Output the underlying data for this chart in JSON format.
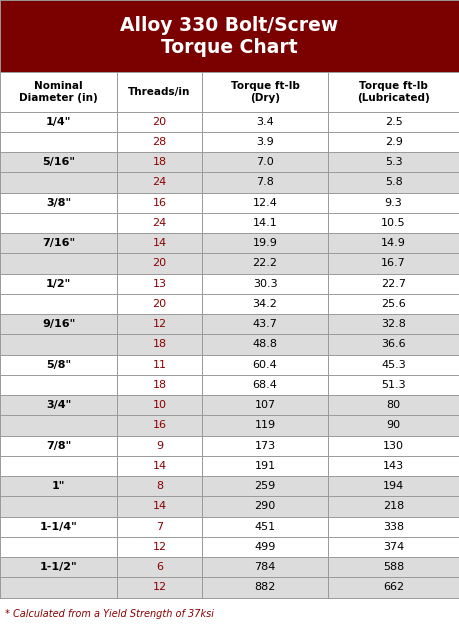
{
  "title": "Alloy 330 Bolt/Screw\nTorque Chart",
  "title_bg": "#7B0000",
  "title_color": "#FFFFFF",
  "header_bg": "#FFFFFF",
  "header_color": "#000000",
  "col_headers": [
    "Nominal\nDiameter (in)",
    "Threads/in",
    "Torque ft-lb\n(Dry)",
    "Torque ft-lb\n(Lubricated)"
  ],
  "rows": [
    [
      "1/4\"",
      "20",
      "3.4",
      "2.5"
    ],
    [
      "",
      "28",
      "3.9",
      "2.9"
    ],
    [
      "5/16\"",
      "18",
      "7.0",
      "5.3"
    ],
    [
      "",
      "24",
      "7.8",
      "5.8"
    ],
    [
      "3/8\"",
      "16",
      "12.4",
      "9.3"
    ],
    [
      "",
      "24",
      "14.1",
      "10.5"
    ],
    [
      "7/16\"",
      "14",
      "19.9",
      "14.9"
    ],
    [
      "",
      "20",
      "22.2",
      "16.7"
    ],
    [
      "1/2\"",
      "13",
      "30.3",
      "22.7"
    ],
    [
      "",
      "20",
      "34.2",
      "25.6"
    ],
    [
      "9/16\"",
      "12",
      "43.7",
      "32.8"
    ],
    [
      "",
      "18",
      "48.8",
      "36.6"
    ],
    [
      "5/8\"",
      "11",
      "60.4",
      "45.3"
    ],
    [
      "",
      "18",
      "68.4",
      "51.3"
    ],
    [
      "3/4\"",
      "10",
      "107",
      "80"
    ],
    [
      "",
      "16",
      "119",
      "90"
    ],
    [
      "7/8\"",
      "9",
      "173",
      "130"
    ],
    [
      "",
      "14",
      "191",
      "143"
    ],
    [
      "1\"",
      "8",
      "259",
      "194"
    ],
    [
      "",
      "14",
      "290",
      "218"
    ],
    [
      "1-1/4\"",
      "7",
      "451",
      "338"
    ],
    [
      "",
      "12",
      "499",
      "374"
    ],
    [
      "1-1/2\"",
      "6",
      "784",
      "588"
    ],
    [
      "",
      "12",
      "882",
      "662"
    ]
  ],
  "row_group_colors": [
    "#FFFFFF",
    "#DCDCDC"
  ],
  "border_color": "#999999",
  "threads_color": "#8B0000",
  "footnote": "* Calculated from a Yield Strength of 37ksi",
  "footnote_color": "#8B0000"
}
